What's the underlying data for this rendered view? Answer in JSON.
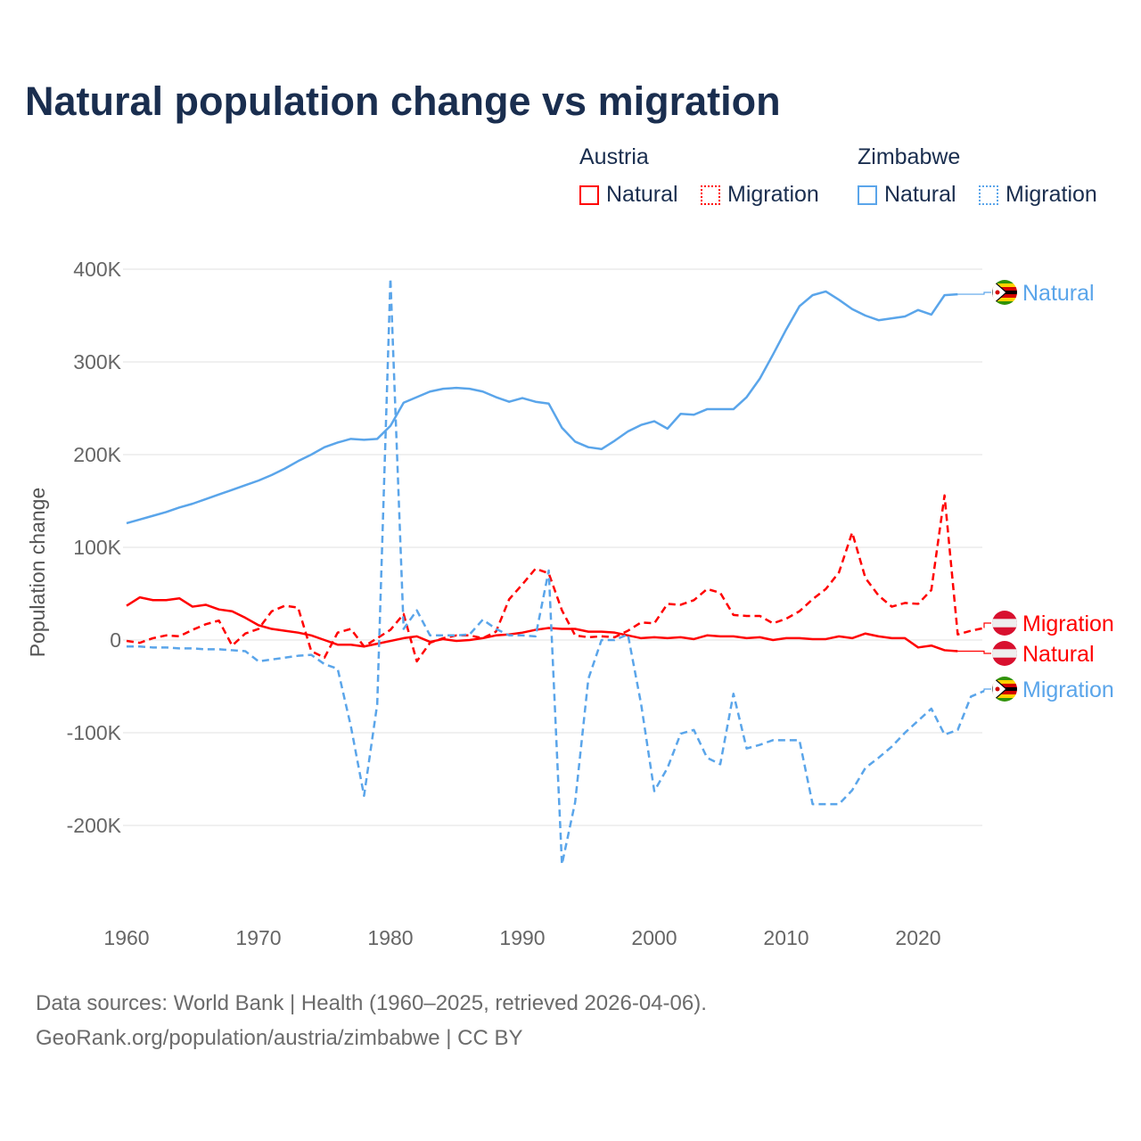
{
  "title": "Natural population change vs migration",
  "legend": {
    "groups": [
      {
        "name": "Austria",
        "items": [
          {
            "label": "Natural",
            "style": "solid"
          },
          {
            "label": "Migration",
            "style": "dashed"
          }
        ]
      },
      {
        "name": "Zimbabwe",
        "items": [
          {
            "label": "Natural",
            "style": "solid"
          },
          {
            "label": "Migration",
            "style": "dashed"
          }
        ]
      }
    ]
  },
  "footer": {
    "line1": "Data sources: World Bank | Health (1960–2025, retrieved 2026-04-06).",
    "line2": "GeoRank.org/population/austria/zimbabwe | CC BY"
  },
  "colors": {
    "austria": "#ff0000",
    "zimbabwe": "#5aa5ea",
    "title": "#1a2e4f",
    "grid": "#e6e6e6"
  },
  "chart_data": {
    "type": "line",
    "title": "Natural population change vs migration",
    "xlabel": "",
    "ylabel": "Population change",
    "xlim": [
      1960,
      2025
    ],
    "ylim": [
      -250000,
      400000
    ],
    "grid": true,
    "legend_position": "top-right",
    "x_ticks": [
      1960,
      1970,
      1980,
      1990,
      2000,
      2010,
      2020
    ],
    "x_tick_labels": [
      "1960",
      "1970",
      "1980",
      "1990",
      "2000",
      "2010",
      "2020"
    ],
    "y_ticks": [
      400000,
      300000,
      200000,
      100000,
      0,
      -100000,
      -200000
    ],
    "y_tick_labels": [
      "400K",
      "300K",
      "200K",
      "100K",
      "0",
      "-100K",
      "-200K"
    ],
    "series": [
      {
        "name": "Zimbabwe Natural",
        "country": "Zimbabwe",
        "kind": "Natural",
        "color": "#5aa5ea",
        "dashed": false,
        "end_label": "Natural",
        "start_year": 1960,
        "values": [
          126,
          130,
          134,
          138,
          143,
          147,
          152,
          157,
          162,
          167,
          172,
          178,
          185,
          193,
          200,
          208,
          213,
          217,
          216,
          217,
          231,
          256,
          262,
          268,
          271,
          272,
          271,
          268,
          262,
          257,
          261,
          257,
          255,
          229,
          214,
          208,
          206,
          215,
          225,
          232,
          236,
          228,
          244,
          243,
          249,
          249,
          249,
          262,
          282,
          308,
          335,
          360,
          372,
          376,
          367,
          357,
          350,
          345,
          347,
          349,
          356,
          351,
          372,
          373
        ],
        "unit": "thousands"
      },
      {
        "name": "Austria Migration",
        "country": "Austria",
        "kind": "Migration",
        "color": "#ff0000",
        "dashed": true,
        "end_label": "Migration",
        "start_year": 1960,
        "values": [
          -1,
          -3,
          2,
          5,
          4,
          11,
          17,
          21,
          -6,
          7,
          12,
          31,
          37,
          35,
          -12,
          -19,
          8,
          12,
          -7,
          2,
          11,
          28,
          -23,
          -3,
          2,
          5,
          5,
          2,
          9,
          44,
          60,
          77,
          72,
          32,
          5,
          3,
          4,
          3,
          10,
          19,
          18,
          39,
          38,
          43,
          55,
          51,
          27,
          26,
          26,
          18,
          23,
          31,
          44,
          55,
          73,
          116,
          67,
          48,
          36,
          40,
          39,
          54,
          156,
          6,
          10,
          13
        ],
        "unit": "thousands"
      },
      {
        "name": "Austria Natural",
        "country": "Austria",
        "kind": "Natural",
        "color": "#ff0000",
        "dashed": false,
        "end_label": "Natural",
        "start_year": 1960,
        "values": [
          37,
          46,
          43,
          43,
          45,
          36,
          38,
          33,
          31,
          24,
          16,
          12,
          10,
          8,
          5,
          0,
          -5,
          -5,
          -7,
          -4,
          -1,
          2,
          4,
          -2,
          1,
          -1,
          0,
          2,
          5,
          6,
          8,
          11,
          13,
          12,
          12,
          9,
          9,
          8,
          5,
          2,
          3,
          2,
          3,
          1,
          5,
          4,
          4,
          2,
          3,
          0,
          2,
          2,
          1,
          1,
          4,
          2,
          7,
          4,
          2,
          2,
          -8,
          -6,
          -11,
          -12
        ],
        "unit": "thousands"
      },
      {
        "name": "Zimbabwe Migration",
        "country": "Zimbabwe",
        "kind": "Migration",
        "color": "#5aa5ea",
        "dashed": true,
        "end_label": "Migration",
        "start_year": 1960,
        "values": [
          -7,
          -7,
          -8,
          -8,
          -9,
          -9,
          -10,
          -10,
          -11,
          -12,
          -23,
          -21,
          -19,
          -17,
          -16,
          -26,
          -31,
          -93,
          -168,
          -69,
          390,
          12,
          32,
          5,
          5,
          5,
          6,
          22,
          12,
          5,
          5,
          4,
          75,
          -242,
          -175,
          -42,
          0,
          0,
          6,
          -69,
          -163,
          -138,
          -101,
          -97,
          -127,
          -134,
          -58,
          -117,
          -113,
          -108,
          -108,
          -108,
          -177,
          -177,
          -177,
          -162,
          -138,
          -127,
          -115,
          -100,
          -87,
          -74,
          -102,
          -97,
          -61,
          -55
        ],
        "unit": "thousands"
      }
    ]
  }
}
